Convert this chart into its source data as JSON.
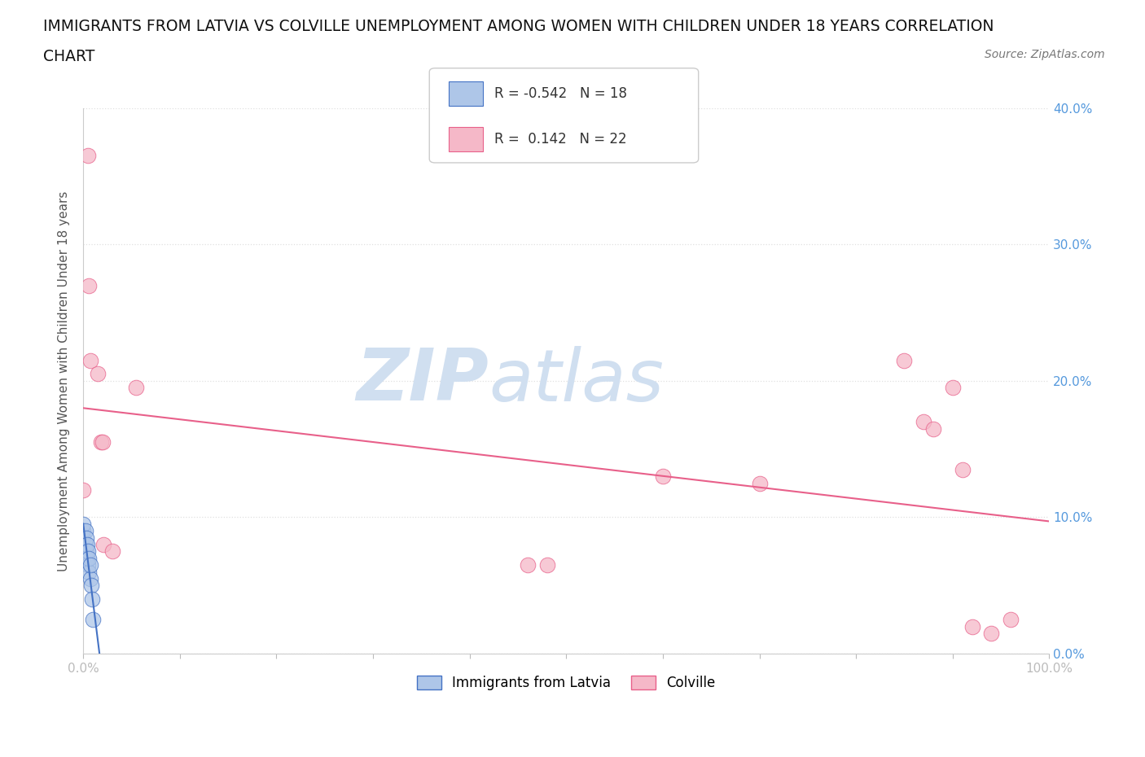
{
  "title_line1": "IMMIGRANTS FROM LATVIA VS COLVILLE UNEMPLOYMENT AMONG WOMEN WITH CHILDREN UNDER 18 YEARS CORRELATION",
  "title_line2": "CHART",
  "source": "Source: ZipAtlas.com",
  "ylabel": "Unemployment Among Women with Children Under 18 years",
  "xlim": [
    0,
    100
  ],
  "ylim": [
    0,
    40
  ],
  "blue_label": "Immigrants from Latvia",
  "pink_label": "Colville",
  "blue_R": -0.542,
  "blue_N": 18,
  "pink_R": 0.142,
  "pink_N": 22,
  "blue_x": [
    0.0,
    0.0,
    0.0,
    0.2,
    0.2,
    0.3,
    0.3,
    0.4,
    0.4,
    0.5,
    0.5,
    0.6,
    0.6,
    0.7,
    0.7,
    0.8,
    0.9,
    1.0
  ],
  "blue_y": [
    8.5,
    9.0,
    9.5,
    8.0,
    9.0,
    7.5,
    8.5,
    7.0,
    8.0,
    6.5,
    7.5,
    6.0,
    7.0,
    5.5,
    6.5,
    5.0,
    4.0,
    2.5
  ],
  "pink_x": [
    0.0,
    0.5,
    0.6,
    0.7,
    1.5,
    1.8,
    2.0,
    2.1,
    3.0,
    5.5,
    46.0,
    48.0,
    60.0,
    70.0,
    85.0,
    87.0,
    88.0,
    90.0,
    91.0,
    92.0,
    94.0,
    96.0
  ],
  "pink_y": [
    12.0,
    36.5,
    27.0,
    21.5,
    20.5,
    15.5,
    15.5,
    8.0,
    7.5,
    19.5,
    6.5,
    6.5,
    13.0,
    12.5,
    21.5,
    17.0,
    16.5,
    19.5,
    13.5,
    2.0,
    1.5,
    2.5
  ],
  "blue_line_color": "#4472c4",
  "pink_line_color": "#e8608a",
  "blue_scatter_color": "#aec6e8",
  "pink_scatter_color": "#f5b8c8",
  "scatter_alpha": 0.75,
  "scatter_size": 180,
  "background_color": "#ffffff",
  "watermark_color": "#d0dff0",
  "grid_color": "#e0e0e0",
  "tick_color": "#5599dd",
  "title_color": "#111111",
  "title_fontsize": 13.5
}
